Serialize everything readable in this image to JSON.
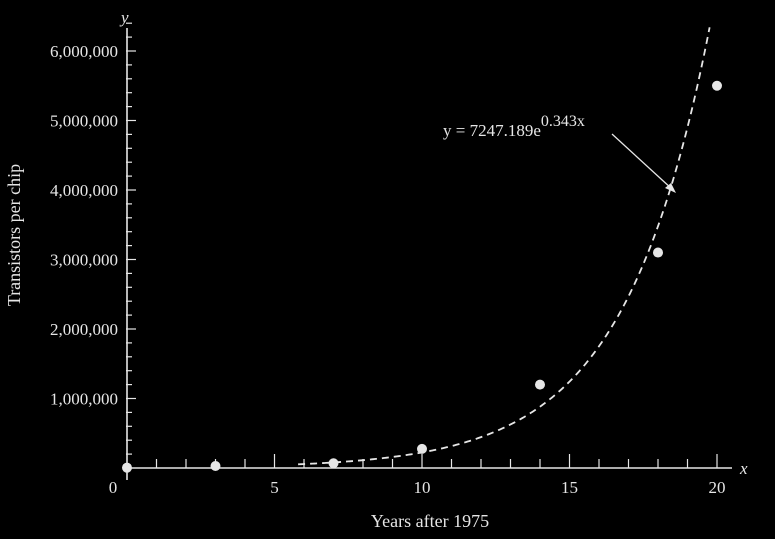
{
  "chart_data": {
    "type": "scatter",
    "xlabel": "Years after 1975",
    "ylabel": "Transistors per chip",
    "x_axis_var": "x",
    "y_axis_var": "y",
    "xlim": [
      0,
      21
    ],
    "ylim": [
      0,
      6500000
    ],
    "x_ticks": [
      0,
      5,
      10,
      15,
      20
    ],
    "x_tick_labels": [
      "0",
      "5",
      "10",
      "15",
      "20"
    ],
    "y_ticks": [
      1000000,
      2000000,
      3000000,
      4000000,
      5000000,
      6000000
    ],
    "y_tick_labels": [
      "1,000,000",
      "2,000,000",
      "3,000,000",
      "4,000,000",
      "5,000,000",
      "6,000,000"
    ],
    "points": [
      {
        "x": 0,
        "y": 4500
      },
      {
        "x": 3,
        "y": 29000
      },
      {
        "x": 7,
        "y": 68000
      },
      {
        "x": 10,
        "y": 275000
      },
      {
        "x": 14,
        "y": 1200000
      },
      {
        "x": 18,
        "y": 3100000
      },
      {
        "x": 20,
        "y": 5500000
      }
    ],
    "model": {
      "a": 7247.189,
      "b": 0.343,
      "label_prefix": "y = 7247.189e",
      "label_exponent": "0.343x"
    },
    "grid": false
  },
  "colors": {
    "background": "#000000",
    "foreground": "#e6e6e6"
  }
}
